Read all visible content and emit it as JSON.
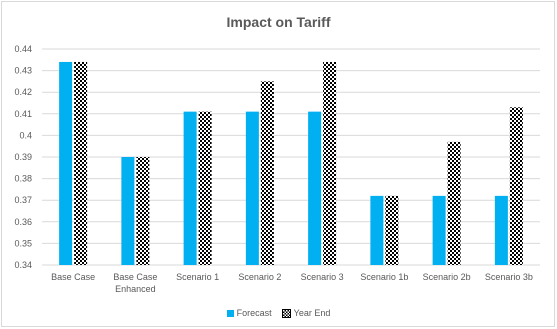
{
  "colors": {
    "forecast": "#00b0f0",
    "yearEnd": "#000000",
    "grid": "#d9d9d9",
    "text": "#595959"
  },
  "chart_data": {
    "type": "bar",
    "title": "Impact on Tariff",
    "categories": [
      [
        "Base Case"
      ],
      [
        "Base Case",
        "Enhanced"
      ],
      [
        "Scenario 1"
      ],
      [
        "Scenario 2"
      ],
      [
        "Scenario 3"
      ],
      [
        "Scenario 1b"
      ],
      [
        "Scenario 2b"
      ],
      [
        "Scenario 3b"
      ]
    ],
    "series": [
      {
        "name": "Forecast",
        "values": [
          0.434,
          0.39,
          0.411,
          0.411,
          0.411,
          0.372,
          0.372,
          0.372
        ]
      },
      {
        "name": "Year End",
        "values": [
          0.434,
          0.39,
          0.411,
          0.425,
          0.434,
          0.372,
          0.397,
          0.413
        ]
      }
    ],
    "ylim": [
      0.34,
      0.44
    ],
    "yticks": [
      "0.34",
      "0.35",
      "0.36",
      "0.37",
      "0.38",
      "0.39",
      "0.4",
      "0.41",
      "0.42",
      "0.43",
      "0.44"
    ],
    "grid": true,
    "legend": "bottom"
  }
}
